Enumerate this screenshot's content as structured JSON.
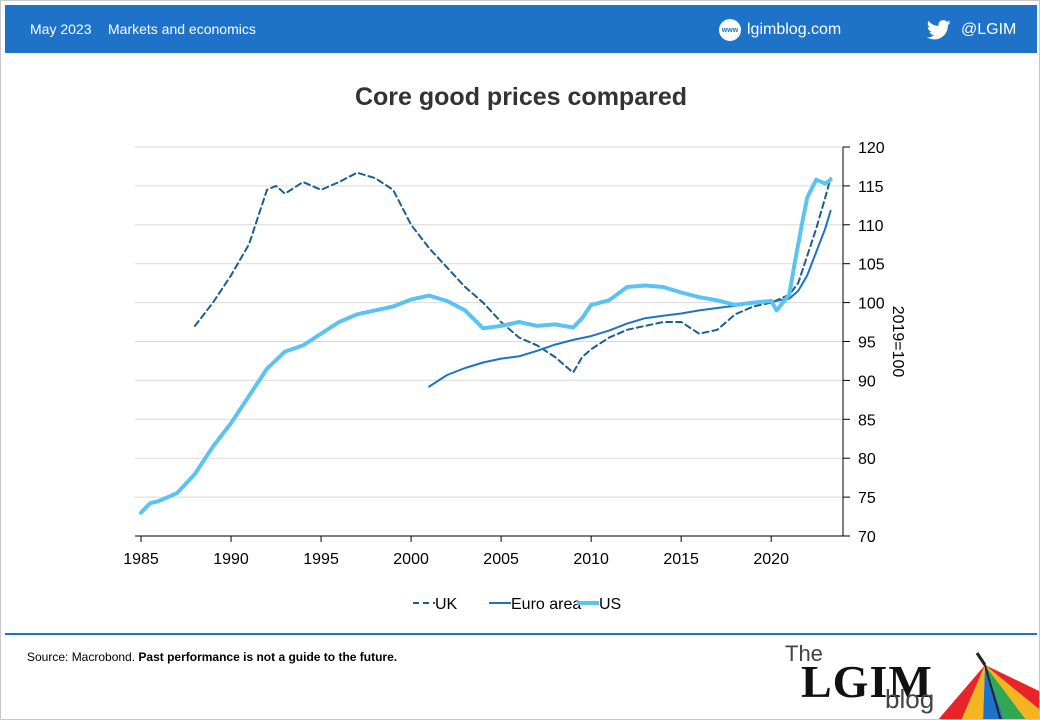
{
  "header": {
    "date": "May 2023",
    "section": "Markets and economics",
    "site": "lgimblog.com",
    "site_icon_text": "www",
    "handle": "@LGIM",
    "bg_color": "#1e73c8"
  },
  "footer": {
    "source_prefix": "Source: Macrobond.",
    "disclaimer": "Past performance is not a guide to the future.",
    "logo_the": "The",
    "logo_lgim": "LGIM",
    "logo_blog": "blog"
  },
  "chart_data": {
    "type": "line",
    "title": "Core good prices compared",
    "ylabel": "2019=100",
    "xlabel": "",
    "xlim": [
      1985,
      2023.6
    ],
    "ylim": [
      70,
      120
    ],
    "x_ticks": [
      1985,
      1990,
      1995,
      2000,
      2005,
      2010,
      2015,
      2020
    ],
    "y_ticks": [
      70,
      75,
      80,
      85,
      90,
      95,
      100,
      105,
      110,
      115,
      120
    ],
    "y_axis_side": "right",
    "grid": "horizontal",
    "legend": "bottom-center",
    "series": [
      {
        "name": "UK",
        "style": "dashed",
        "color": "#1b5e91",
        "x": [
          1988,
          1989,
          1990,
          1991,
          1992,
          1992.5,
          1993,
          1994,
          1995,
          1996,
          1997,
          1998,
          1999,
          2000,
          2001,
          2002,
          2003,
          2004,
          2005,
          2006,
          2007,
          2008,
          2009,
          2009.5,
          2010,
          2011,
          2012,
          2013,
          2014,
          2015,
          2016,
          2017,
          2018,
          2019,
          2020,
          2020.5,
          2021,
          2021.5,
          2022,
          2022.5,
          2023,
          2023.3
        ],
        "values": [
          97,
          100,
          103.5,
          107.5,
          114.5,
          115,
          114,
          115.5,
          114.5,
          115.5,
          116.7,
          116,
          114.5,
          110,
          107,
          104.5,
          102,
          100,
          97.5,
          95.5,
          94.5,
          93,
          91,
          93,
          94,
          95.5,
          96.5,
          97,
          97.5,
          97.5,
          96,
          96.5,
          98.5,
          99.5,
          100,
          100.5,
          101,
          102.5,
          106,
          109.5,
          113.5,
          116
        ]
      },
      {
        "name": "Euro area",
        "style": "solid",
        "color": "#1e73c8",
        "x": [
          2001,
          2002,
          2003,
          2004,
          2005,
          2006,
          2007,
          2008,
          2009,
          2010,
          2011,
          2012,
          2013,
          2014,
          2015,
          2016,
          2017,
          2018,
          2019,
          2020,
          2021,
          2021.5,
          2022,
          2022.5,
          2023,
          2023.3
        ],
        "values": [
          89.2,
          90.7,
          91.6,
          92.3,
          92.8,
          93.1,
          93.8,
          94.6,
          95.2,
          95.7,
          96.4,
          97.3,
          98,
          98.3,
          98.6,
          99,
          99.3,
          99.6,
          99.9,
          100.1,
          100.5,
          101.5,
          103.5,
          106.5,
          109.5,
          111.8
        ]
      },
      {
        "name": "US",
        "style": "solid",
        "color": "#5bc3f0",
        "x": [
          1985,
          1985.5,
          1986,
          1986.5,
          1987,
          1988,
          1989,
          1990,
          1991,
          1992,
          1993,
          1994,
          1995,
          1996,
          1997,
          1998,
          1999,
          2000,
          2001,
          2002,
          2003,
          2004,
          2005,
          2006,
          2007,
          2008,
          2009,
          2009.5,
          2010,
          2011,
          2012,
          2013,
          2014,
          2015,
          2016,
          2017,
          2018,
          2019,
          2020,
          2020.3,
          2021,
          2021.3,
          2021.7,
          2022,
          2022.5,
          2023,
          2023.3
        ],
        "values": [
          73,
          74.2,
          74.5,
          75,
          75.5,
          78,
          81.5,
          84.5,
          88,
          91.5,
          93.7,
          94.5,
          96,
          97.5,
          98.5,
          99,
          99.5,
          100.4,
          100.9,
          100.2,
          99,
          96.7,
          97,
          97.5,
          97,
          97.2,
          96.8,
          98,
          99.7,
          100.3,
          102,
          102.2,
          102,
          101.3,
          100.7,
          100.3,
          99.7,
          100,
          100.2,
          99,
          101,
          105,
          110,
          113.5,
          115.8,
          115.3,
          115.8
        ]
      }
    ]
  }
}
